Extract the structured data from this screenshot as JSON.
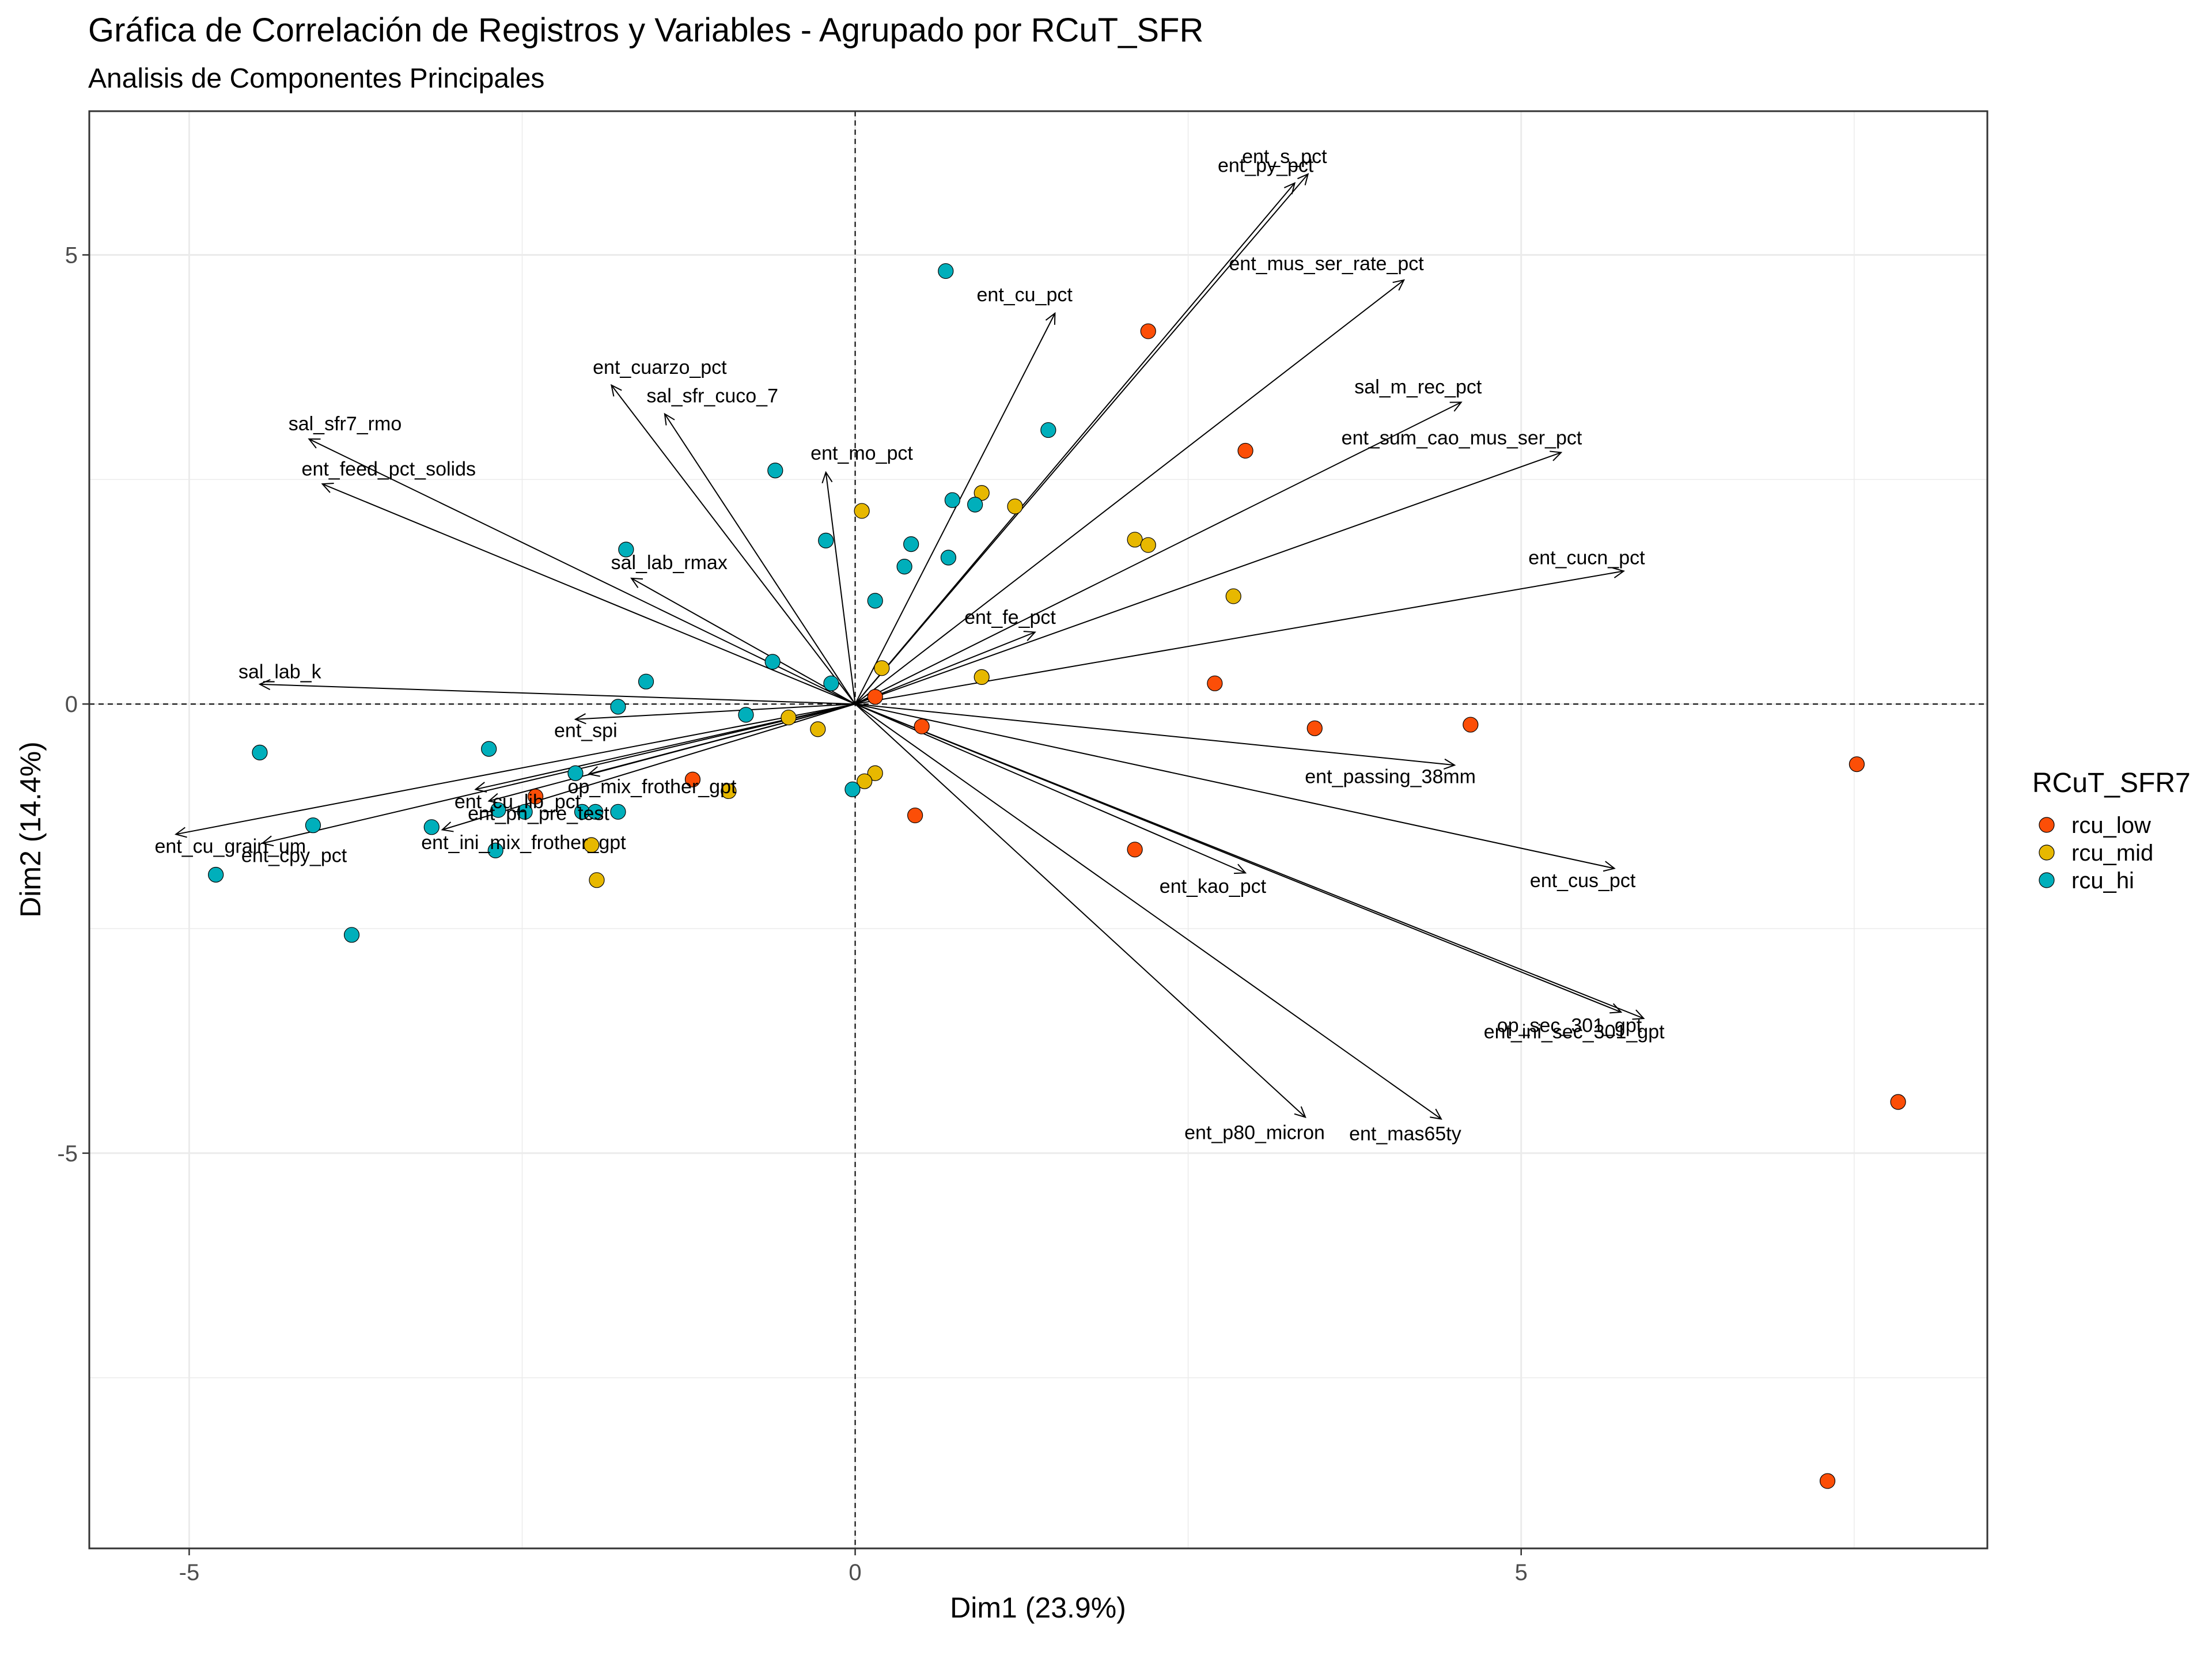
{
  "chart_data": {
    "type": "scatter",
    "title": "Gráfica de Correlación de Registros y Variables - Agrupado por RCuT_SFR",
    "subtitle": "Analisis de Componentes Principales",
    "xlabel": "Dim1 (23.9%)",
    "ylabel": "Dim2 (14.4%)",
    "xlim": [
      -5.75,
      8.5
    ],
    "ylim": [
      -9.4,
      6.6
    ],
    "x_ticks": [
      -5,
      0,
      5
    ],
    "x_tick_labels": [
      "-5",
      "0",
      "5"
    ],
    "y_ticks": [
      -5,
      0,
      5
    ],
    "y_tick_labels": [
      "-5",
      "0",
      "5"
    ],
    "grid": true,
    "legend": {
      "title": "RCuT_SFR7",
      "position": "right",
      "entries": [
        "rcu_low",
        "rcu_mid",
        "rcu_hi"
      ]
    },
    "colors": {
      "rcu_low": "#FC4E07",
      "rcu_mid": "#E7B800",
      "rcu_hi": "#00AFBB"
    },
    "series": [
      {
        "name": "rcu_low",
        "points": [
          [
            2.2,
            4.15
          ],
          [
            2.93,
            2.82
          ],
          [
            2.7,
            0.23
          ],
          [
            3.45,
            -0.27
          ],
          [
            4.62,
            -0.23
          ],
          [
            7.52,
            -0.67
          ],
          [
            0.5,
            -0.25
          ],
          [
            0.15,
            0.08
          ],
          [
            0.45,
            -1.24
          ],
          [
            -1.22,
            -0.84
          ],
          [
            -2.4,
            -1.03
          ],
          [
            2.1,
            -1.62
          ],
          [
            7.83,
            -4.43
          ],
          [
            7.3,
            -8.65
          ]
        ]
      },
      {
        "name": "rcu_mid",
        "points": [
          [
            0.05,
            2.15
          ],
          [
            0.95,
            2.35
          ],
          [
            1.2,
            2.2
          ],
          [
            2.1,
            1.83
          ],
          [
            2.2,
            1.77
          ],
          [
            2.84,
            1.2
          ],
          [
            0.2,
            0.4
          ],
          [
            0.95,
            0.3
          ],
          [
            -0.5,
            -0.15
          ],
          [
            -0.28,
            -0.28
          ],
          [
            -0.95,
            -0.97
          ],
          [
            0.15,
            -0.77
          ],
          [
            0.07,
            -0.86
          ],
          [
            -1.98,
            -1.57
          ],
          [
            -1.94,
            -1.96
          ]
        ]
      },
      {
        "name": "rcu_hi",
        "points": [
          [
            0.68,
            4.82
          ],
          [
            1.45,
            3.05
          ],
          [
            -0.6,
            2.6
          ],
          [
            0.73,
            2.27
          ],
          [
            0.9,
            2.22
          ],
          [
            -0.22,
            1.82
          ],
          [
            0.42,
            1.78
          ],
          [
            0.37,
            1.53
          ],
          [
            0.7,
            1.63
          ],
          [
            0.15,
            1.15
          ],
          [
            -1.72,
            1.72
          ],
          [
            -0.62,
            0.47
          ],
          [
            -0.18,
            0.23
          ],
          [
            -1.57,
            0.25
          ],
          [
            -1.78,
            -0.03
          ],
          [
            -0.82,
            -0.12
          ],
          [
            -2.75,
            -0.5
          ],
          [
            -4.47,
            -0.54
          ],
          [
            -0.02,
            -0.95
          ],
          [
            -2.1,
            -0.77
          ],
          [
            -2.68,
            -1.18
          ],
          [
            -2.48,
            -1.2
          ],
          [
            -2.05,
            -1.2
          ],
          [
            -1.95,
            -1.2
          ],
          [
            -1.78,
            -1.2
          ],
          [
            -3.18,
            -1.37
          ],
          [
            -4.07,
            -1.35
          ],
          [
            -2.7,
            -1.63
          ],
          [
            -4.8,
            -1.9
          ],
          [
            -3.78,
            -2.57
          ]
        ]
      }
    ],
    "variables": [
      {
        "name": "ent_s_pct",
        "x": 3.4,
        "y": 5.9
      },
      {
        "name": "ent_py_pct",
        "x": 3.3,
        "y": 5.8
      },
      {
        "name": "ent_mus_ser_rate_pct",
        "x": 4.12,
        "y": 4.72
      },
      {
        "name": "ent_cu_pct",
        "x": 1.5,
        "y": 4.35
      },
      {
        "name": "ent_cuarzo_pct",
        "x": -1.83,
        "y": 3.55
      },
      {
        "name": "sal_sfr_cuco_7",
        "x": -1.43,
        "y": 3.23
      },
      {
        "name": "sal_sfr7_rmo",
        "x": -4.1,
        "y": 2.95
      },
      {
        "name": "ent_feed_pct_solids",
        "x": -4.0,
        "y": 2.45
      },
      {
        "name": "ent_mo_pct",
        "x": -0.22,
        "y": 2.58
      },
      {
        "name": "sal_m_rec_pct",
        "x": 4.55,
        "y": 3.36
      },
      {
        "name": "ent_sum_cao_mus_ser_pct",
        "x": 5.3,
        "y": 2.8
      },
      {
        "name": "ent_cucn_pct",
        "x": 5.77,
        "y": 1.48
      },
      {
        "name": "sal_lab_rmax",
        "x": -1.68,
        "y": 1.4
      },
      {
        "name": "ent_fe_pct",
        "x": 1.35,
        "y": 0.8
      },
      {
        "name": "sal_lab_k",
        "x": -4.47,
        "y": 0.22
      },
      {
        "name": "ent_spi",
        "x": -2.1,
        "y": -0.17
      },
      {
        "name": "ent_passing_38mm",
        "x": 4.5,
        "y": -0.68
      },
      {
        "name": "ent_cus_pct",
        "x": 5.7,
        "y": -1.83
      },
      {
        "name": "ent_cu_lib_pct",
        "x": -2.85,
        "y": -0.95
      },
      {
        "name": "op_mix_frother_gpt",
        "x": -2.0,
        "y": -0.78
      },
      {
        "name": "ent_cu_grain_um",
        "x": -5.1,
        "y": -1.45
      },
      {
        "name": "ent_ph_pre_test",
        "x": -2.75,
        "y": -1.08
      },
      {
        "name": "ent_cpy_pct",
        "x": -4.45,
        "y": -1.55
      },
      {
        "name": "ent_ini_mix_frother_gpt",
        "x": -3.1,
        "y": -1.4
      },
      {
        "name": "ent_kao_pct",
        "x": 2.93,
        "y": -1.88
      },
      {
        "name": "op_sec_301_gpt",
        "x": 5.75,
        "y": -3.43
      },
      {
        "name": "ent_ini_sec_301_gpt",
        "x": 5.92,
        "y": -3.5
      },
      {
        "name": "ent_p80_micron",
        "x": 3.38,
        "y": -4.6
      },
      {
        "name": "ent_mas65ty",
        "x": 4.4,
        "y": -4.62
      }
    ]
  }
}
